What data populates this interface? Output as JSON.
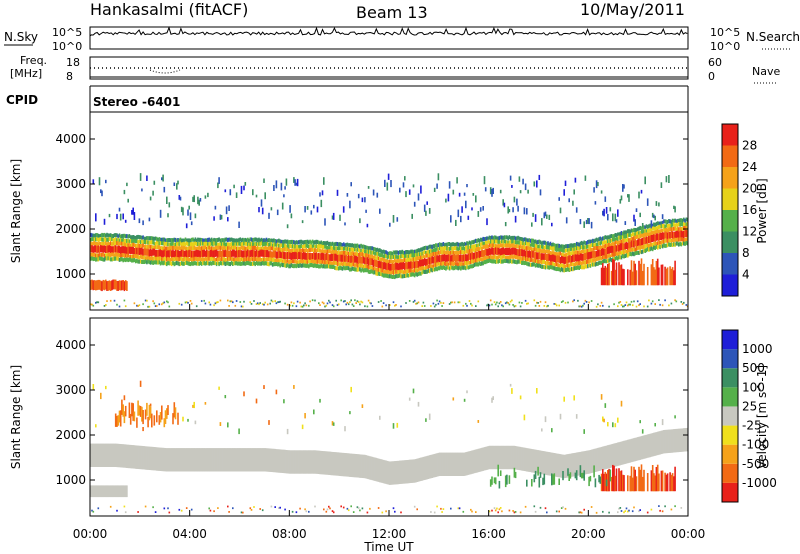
{
  "header": {
    "station": "Hankasalmi (fitACF)",
    "beam": "Beam 13",
    "date": "10/May/2011"
  },
  "top_panels": {
    "nsky_label": "N.Sky",
    "nsky_ticks": [
      "10^5",
      "10^0"
    ],
    "nsearch_label": "N.Search",
    "nsearch_ticks": [
      "10^5",
      "10^0"
    ],
    "freq_label_line1": "Freq.",
    "freq_label_line2": "[MHz]",
    "freq_ticks": [
      "18",
      "8"
    ],
    "nave_label": "Nave",
    "nave_ticks": [
      "60",
      "0"
    ],
    "cpid_label": "CPID",
    "cpid_value": "Stereo -6401"
  },
  "colorbar_power": {
    "title": "Power [dB]",
    "ticks": [
      "4",
      "8",
      "12",
      "16",
      "20",
      "24",
      "28"
    ],
    "colors": [
      "#1f1fd8",
      "#2d55b8",
      "#3b8f62",
      "#55b04a",
      "#e6d21a",
      "#f5a21a",
      "#f26a14",
      "#e8211a"
    ]
  },
  "colorbar_velocity": {
    "title": "Velocity [m s^-1]",
    "ticks": [
      "1000",
      "500",
      "100",
      "25",
      "-25",
      "-100",
      "-500",
      "-1000"
    ],
    "colors": [
      "#1f1fd8",
      "#2d55b8",
      "#3b8f62",
      "#55b04a",
      "#c8c8c0",
      "#f0e01c",
      "#f5a21a",
      "#f26a14",
      "#e8211a"
    ]
  },
  "chart_data": [
    {
      "type": "heatmap",
      "title": "Power",
      "xlabel": "Time UT",
      "ylabel": "Slant Range [km]",
      "xlim": [
        "00:00",
        "24:00"
      ],
      "ylim": [
        200,
        4600
      ],
      "yticks": [
        1000,
        2000,
        3000,
        4000
      ],
      "xticks": [
        "00:00",
        "04:00",
        "08:00",
        "12:00",
        "16:00",
        "20:00",
        "00:00"
      ],
      "colorbar": "Power [dB]",
      "colorbar_range": [
        0,
        32
      ],
      "features": [
        {
          "name": "main band",
          "hours": [
            0,
            1,
            2,
            3,
            4,
            5,
            6,
            7,
            8,
            9,
            10,
            11,
            12,
            13,
            14,
            15,
            16,
            17,
            18,
            19,
            20,
            21,
            22,
            23,
            24
          ],
          "center_km": [
            1550,
            1550,
            1500,
            1450,
            1450,
            1450,
            1450,
            1450,
            1400,
            1400,
            1350,
            1300,
            1150,
            1200,
            1350,
            1350,
            1500,
            1500,
            1400,
            1300,
            1400,
            1550,
            1700,
            1850,
            1900
          ],
          "typical_power_db": 24
        },
        {
          "name": "upper scatter",
          "hour_range": [
            0,
            23.5
          ],
          "range_km": [
            2000,
            3100
          ],
          "typical_power_db": 8
        },
        {
          "name": "near-range patch",
          "hour_range": [
            0,
            1.5
          ],
          "range_km": [
            600,
            900
          ],
          "typical_power_db": 26
        },
        {
          "name": "late near-range echoes",
          "hour_range": [
            20.5,
            23.5
          ],
          "range_km": [
            700,
            1300
          ],
          "typical_power_db": 28
        }
      ]
    },
    {
      "type": "heatmap",
      "title": "Velocity",
      "xlabel": "Time UT",
      "ylabel": "Slant Range [km]",
      "xlim": [
        "00:00",
        "24:00"
      ],
      "ylim": [
        200,
        4600
      ],
      "yticks": [
        1000,
        2000,
        3000,
        4000
      ],
      "xticks": [
        "00:00",
        "04:00",
        "08:00",
        "12:00",
        "16:00",
        "20:00",
        "00:00"
      ],
      "colorbar": "Velocity [m s^-1]",
      "colorbar_range": [
        -1000,
        1000
      ],
      "features": [
        {
          "name": "ground scatter band",
          "velocity_ms": 0,
          "range_km_note": "follows main power band"
        },
        {
          "name": "orange patches",
          "hour_range": [
            1,
            3.5
          ],
          "range_km": [
            2100,
            2700
          ],
          "velocity_ms": -300
        },
        {
          "name": "green patches",
          "hour_range": [
            16,
            21
          ],
          "range_km": [
            800,
            1300
          ],
          "velocity_ms": 100
        },
        {
          "name": "late orange echoes",
          "hour_range": [
            20.5,
            23.5
          ],
          "range_km": [
            700,
            1400
          ],
          "velocity_ms": -400
        }
      ]
    }
  ]
}
